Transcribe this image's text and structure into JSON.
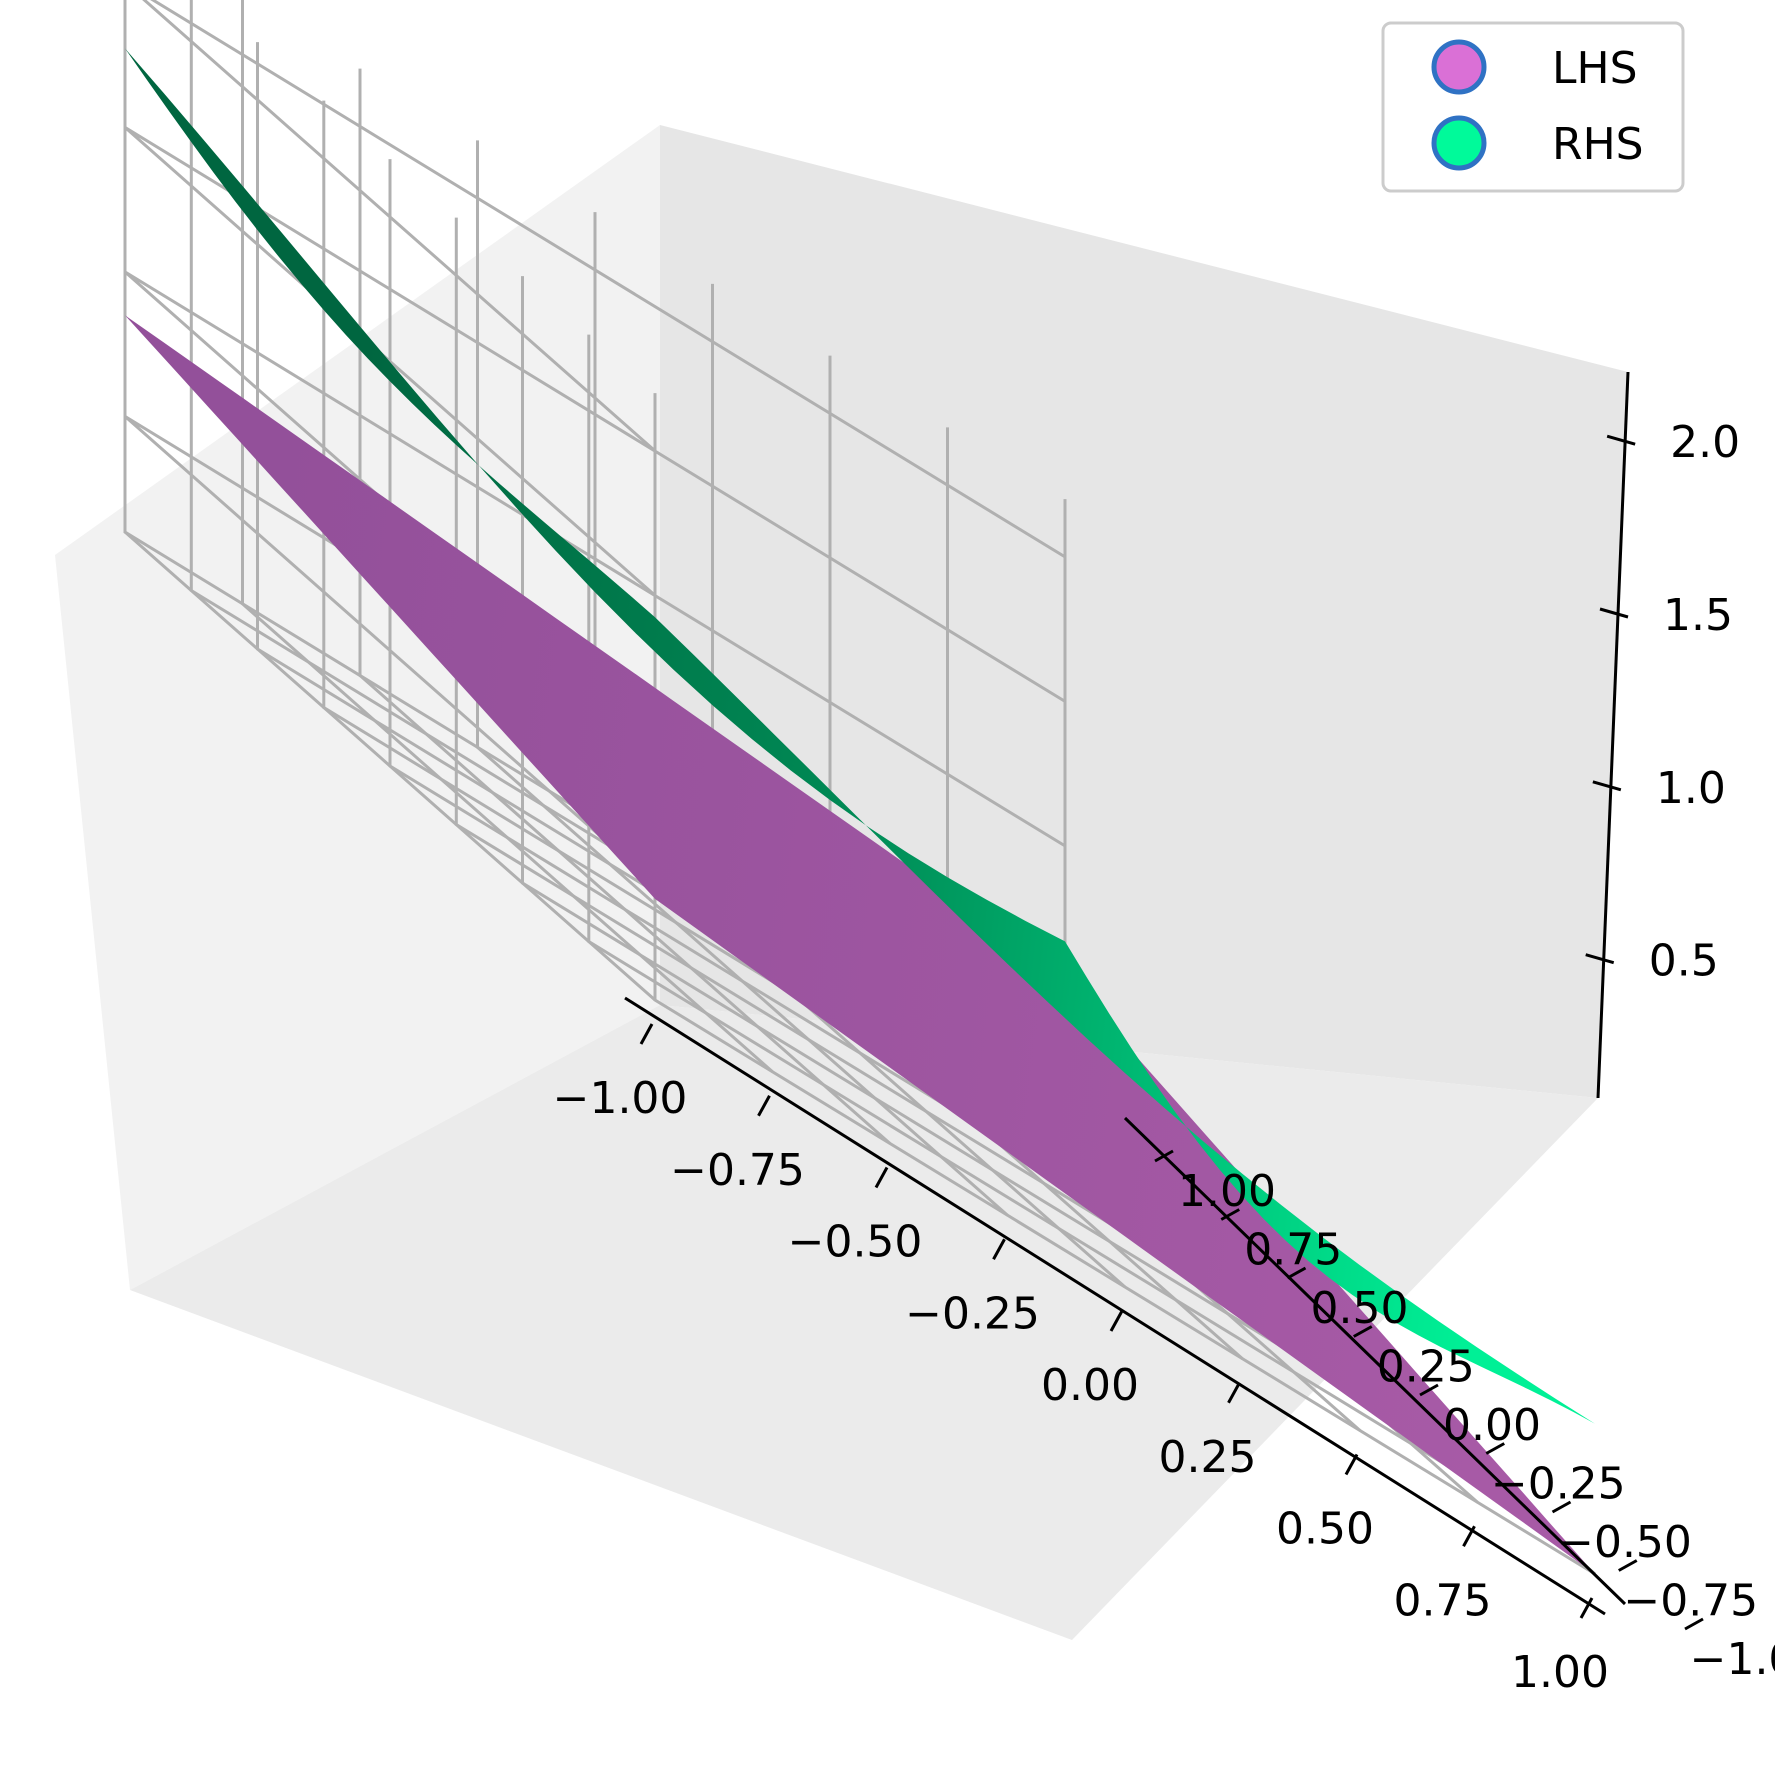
{
  "chart_data": {
    "type": "surface3d",
    "title": "",
    "xlabel": "",
    "ylabel": "",
    "zlabel": "",
    "xlim": [
      -1.0,
      1.0
    ],
    "ylim": [
      -1.0,
      1.0
    ],
    "zlim": [
      0.1,
      2.2
    ],
    "grid": true,
    "legend_position": "top-right",
    "x_ticks": [
      "−1.00",
      "−0.75",
      "−0.50",
      "−0.25",
      "0.00",
      "0.25",
      "0.50",
      "0.75",
      "1.00"
    ],
    "y_ticks": [
      "−1.00",
      "−0.75",
      "−0.50",
      "−0.25",
      "0.00",
      "0.25",
      "0.50",
      "0.75",
      "1.00"
    ],
    "z_ticks": [
      "0.5",
      "1.0",
      "1.5",
      "2.0"
    ],
    "x_tick_values": [
      -1.0,
      -0.75,
      -0.5,
      -0.25,
      0.0,
      0.25,
      0.5,
      0.75,
      1.0
    ],
    "y_tick_values": [
      -1.0,
      -0.75,
      -0.5,
      -0.25,
      0.0,
      0.25,
      0.5,
      0.75,
      1.0
    ],
    "z_tick_values": [
      0.5,
      1.0,
      1.5,
      2.0
    ],
    "series": [
      {
        "name": "LHS",
        "color": "#da70d6",
        "marker_edge_color": "#2f72c4",
        "corners": [
          {
            "x": -1.0,
            "y": -1.0,
            "z": 0.45
          },
          {
            "x": 1.0,
            "y": -1.0,
            "z": 0.1
          },
          {
            "x": 1.0,
            "y": 1.0,
            "z": 0.55
          },
          {
            "x": -1.0,
            "y": 1.0,
            "z": 0.85
          }
        ]
      },
      {
        "name": "RHS",
        "color": "#00fa9a",
        "marker_edge_color": "#2f72c4",
        "corners": [
          {
            "x": -1.0,
            "y": -1.0,
            "z": 1.6
          },
          {
            "x": 1.0,
            "y": -1.0,
            "z": 0.95
          },
          {
            "x": 1.0,
            "y": 1.0,
            "z": 1.35
          },
          {
            "x": -1.0,
            "y": 1.0,
            "z": 2.1
          }
        ],
        "minimum": {
          "x": 0.55,
          "y": 0.15,
          "z": 0.12
        }
      }
    ]
  }
}
